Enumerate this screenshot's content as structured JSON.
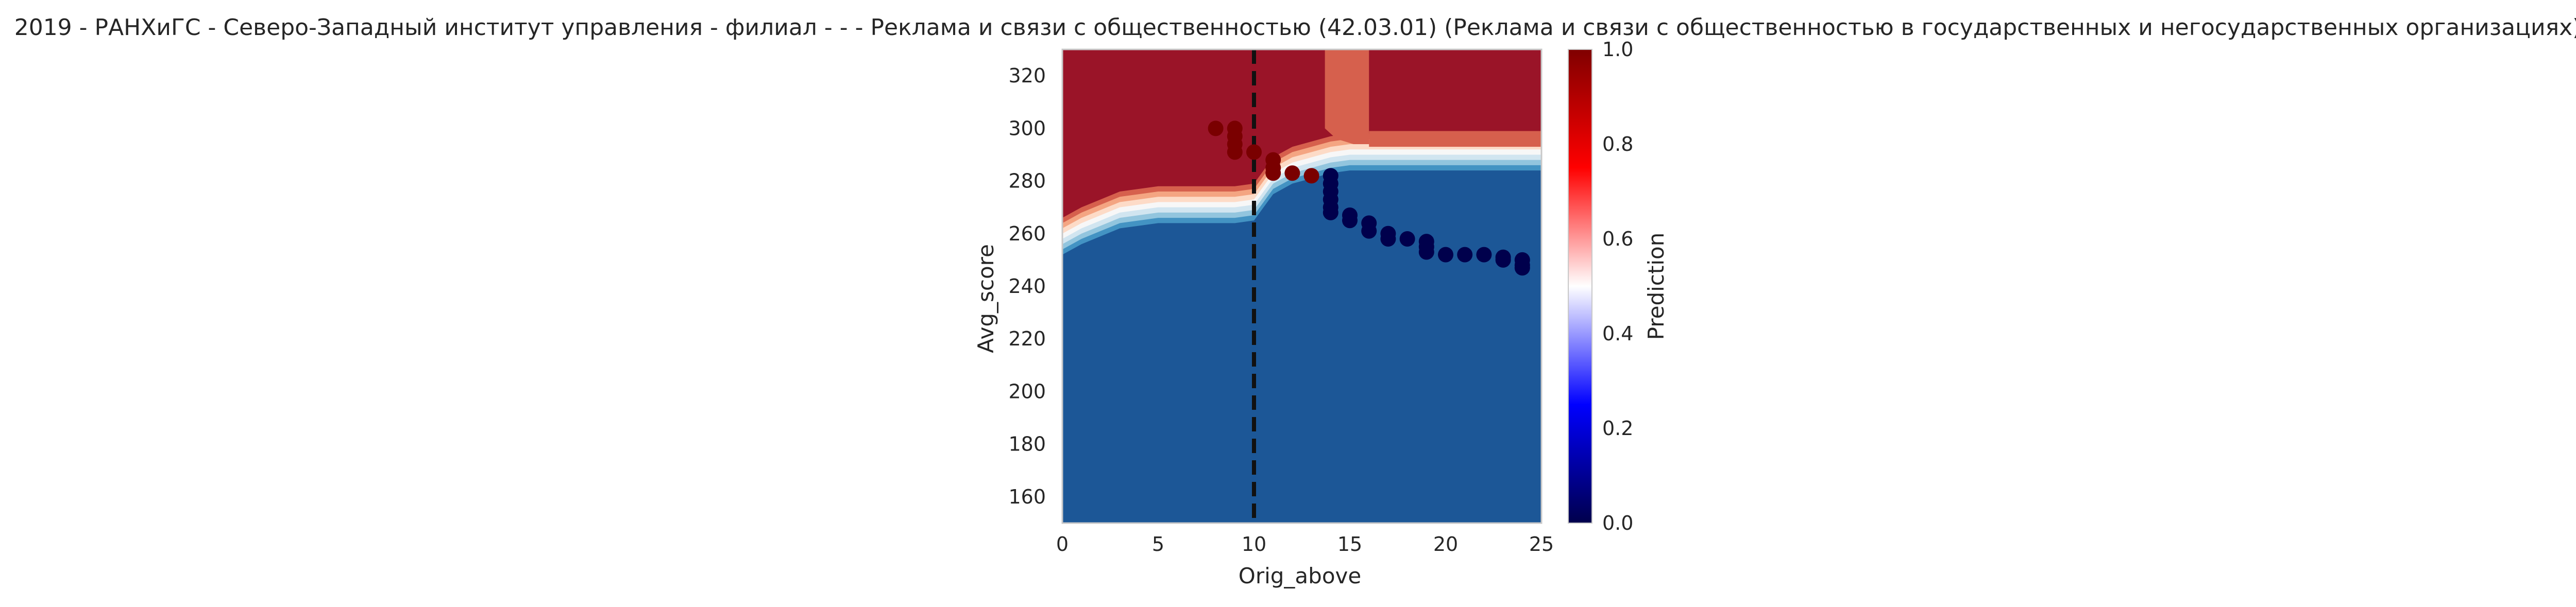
{
  "chart_data": {
    "type": "contour",
    "title": "2019 - РАНХиГС - Северо-Западный институт управления - филиал - - - Реклама и связи с общественностью (42.03.01) (Реклама и связи с общественностью в государственных и негосударственных организациях)",
    "xlabel": "Orig_above",
    "ylabel": "Avg_score",
    "xlim": [
      0,
      25
    ],
    "ylim": [
      150,
      330
    ],
    "xticks": [
      0,
      5,
      10,
      15,
      20,
      25
    ],
    "yticks": [
      160,
      180,
      200,
      220,
      240,
      260,
      280,
      300,
      320
    ],
    "vline_x": 10,
    "colorbar": {
      "label": "Prediction",
      "ticks": [
        0.0,
        0.2,
        0.4,
        0.6,
        0.8,
        1.0
      ],
      "tick_labels": [
        "0.0",
        "0.2",
        "0.4",
        "0.6",
        "0.8",
        "1.0"
      ],
      "colormap": "seismic"
    },
    "contour_levels": [
      {
        "range": "0.9-1.0",
        "color": "#9a1428"
      },
      {
        "range": "0.7-0.9",
        "color": "#d6604d"
      },
      {
        "range": "0.6-0.7",
        "color": "#f4a582"
      },
      {
        "range": "0.5-0.6",
        "color": "#fddbc7"
      },
      {
        "range": "0.4-0.5",
        "color": "#f7f7f7"
      },
      {
        "range": "0.3-0.4",
        "color": "#d1e5f0"
      },
      {
        "range": "0.2-0.3",
        "color": "#92c5de"
      },
      {
        "range": "0.1-0.2",
        "color": "#4393c3"
      },
      {
        "range": "0.0-0.1",
        "color": "#1c5797"
      }
    ],
    "boundary_curve": [
      {
        "x": 0,
        "y": 258
      },
      {
        "x": 1,
        "y": 262
      },
      {
        "x": 2,
        "y": 265
      },
      {
        "x": 3,
        "y": 268
      },
      {
        "x": 4,
        "y": 269
      },
      {
        "x": 5,
        "y": 270
      },
      {
        "x": 6,
        "y": 270
      },
      {
        "x": 7,
        "y": 270
      },
      {
        "x": 8,
        "y": 270
      },
      {
        "x": 9,
        "y": 270
      },
      {
        "x": 10,
        "y": 271
      },
      {
        "x": 10.5,
        "y": 276
      },
      {
        "x": 11,
        "y": 281
      },
      {
        "x": 12,
        "y": 285
      },
      {
        "x": 13,
        "y": 287
      },
      {
        "x": 14,
        "y": 289
      },
      {
        "x": 15,
        "y": 290
      },
      {
        "x": 16,
        "y": 290
      },
      {
        "x": 20,
        "y": 290
      },
      {
        "x": 25,
        "y": 290
      }
    ],
    "points": [
      {
        "x": 8,
        "y": 300,
        "prediction": 1
      },
      {
        "x": 9,
        "y": 300,
        "prediction": 1
      },
      {
        "x": 9,
        "y": 297,
        "prediction": 1
      },
      {
        "x": 9,
        "y": 294,
        "prediction": 1
      },
      {
        "x": 9,
        "y": 291,
        "prediction": 1
      },
      {
        "x": 10,
        "y": 291,
        "prediction": 1
      },
      {
        "x": 11,
        "y": 288,
        "prediction": 1
      },
      {
        "x": 11,
        "y": 285,
        "prediction": 1
      },
      {
        "x": 11,
        "y": 283,
        "prediction": 1
      },
      {
        "x": 12,
        "y": 283,
        "prediction": 1
      },
      {
        "x": 13,
        "y": 282,
        "prediction": 1
      },
      {
        "x": 14,
        "y": 282,
        "prediction": 0
      },
      {
        "x": 14,
        "y": 279,
        "prediction": 0
      },
      {
        "x": 14,
        "y": 276,
        "prediction": 0
      },
      {
        "x": 14,
        "y": 273,
        "prediction": 0
      },
      {
        "x": 14,
        "y": 270,
        "prediction": 0
      },
      {
        "x": 14,
        "y": 268,
        "prediction": 0
      },
      {
        "x": 15,
        "y": 267,
        "prediction": 0
      },
      {
        "x": 15,
        "y": 265,
        "prediction": 0
      },
      {
        "x": 16,
        "y": 264,
        "prediction": 0
      },
      {
        "x": 16,
        "y": 261,
        "prediction": 0
      },
      {
        "x": 17,
        "y": 260,
        "prediction": 0
      },
      {
        "x": 17,
        "y": 258,
        "prediction": 0
      },
      {
        "x": 18,
        "y": 258,
        "prediction": 0
      },
      {
        "x": 19,
        "y": 257,
        "prediction": 0
      },
      {
        "x": 19,
        "y": 255,
        "prediction": 0
      },
      {
        "x": 19,
        "y": 253,
        "prediction": 0
      },
      {
        "x": 20,
        "y": 252,
        "prediction": 0
      },
      {
        "x": 21,
        "y": 252,
        "prediction": 0
      },
      {
        "x": 22,
        "y": 252,
        "prediction": 0
      },
      {
        "x": 23,
        "y": 251,
        "prediction": 0
      },
      {
        "x": 23,
        "y": 250,
        "prediction": 0
      },
      {
        "x": 24,
        "y": 250,
        "prediction": 0
      },
      {
        "x": 24,
        "y": 248,
        "prediction": 0
      },
      {
        "x": 24,
        "y": 247,
        "prediction": 0
      }
    ]
  }
}
